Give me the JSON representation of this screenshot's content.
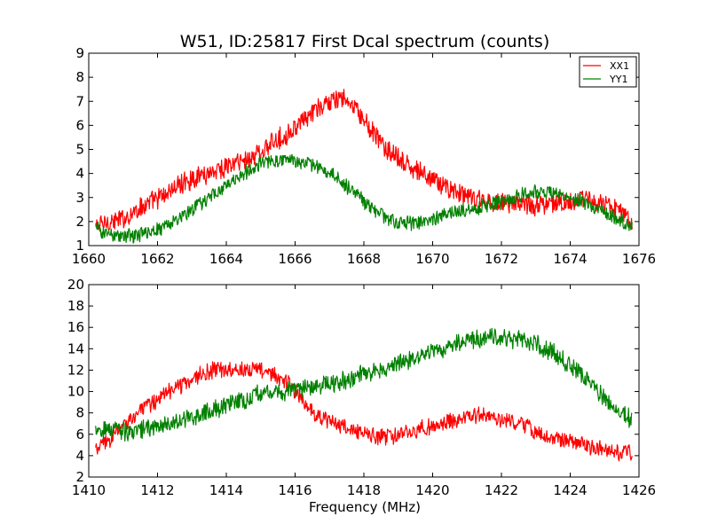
{
  "figure": {
    "title": "W51, ID:25817 First Dcal spectrum (counts)",
    "xlabel": "Frequency (MHz)"
  },
  "chart_data": [
    {
      "type": "line",
      "title": "W51, ID:25817 First Dcal spectrum (counts)",
      "xlabel": "",
      "ylabel": "",
      "xlim": [
        1660,
        1676
      ],
      "ylim": [
        1,
        9
      ],
      "xticks": [
        "1660",
        "1662",
        "1664",
        "1666",
        "1668",
        "1670",
        "1672",
        "1674",
        "1676"
      ],
      "yticks": [
        "1",
        "2",
        "3",
        "4",
        "5",
        "6",
        "7",
        "8",
        "9"
      ],
      "legend_position": "top-right",
      "grid": false,
      "series": [
        {
          "name": "XX1",
          "color": "#ff0000",
          "x": [
            1660.2,
            1660.6,
            1661,
            1661.4,
            1661.8,
            1662.2,
            1662.6,
            1663,
            1663.4,
            1663.8,
            1664.2,
            1664.6,
            1665,
            1665.4,
            1665.8,
            1666.2,
            1666.6,
            1667,
            1667.4,
            1667.8,
            1668.2,
            1668.6,
            1669,
            1669.4,
            1669.8,
            1670.2,
            1670.6,
            1671,
            1671.4,
            1671.8,
            1672.2,
            1672.6,
            1673,
            1673.4,
            1673.8,
            1674.2,
            1674.6,
            1675,
            1675.4,
            1675.8
          ],
          "y": [
            1.8,
            2.0,
            2.1,
            2.5,
            2.8,
            3.1,
            3.5,
            3.8,
            4.0,
            4.2,
            4.4,
            4.6,
            4.9,
            5.3,
            5.7,
            6.1,
            6.6,
            7.0,
            7.1,
            6.6,
            5.8,
            5.1,
            4.6,
            4.2,
            3.9,
            3.6,
            3.3,
            3.0,
            2.9,
            2.8,
            2.8,
            2.7,
            2.7,
            2.8,
            2.8,
            2.9,
            2.9,
            2.7,
            2.4,
            2.1
          ]
        },
        {
          "name": "YY1",
          "color": "#008000",
          "x": [
            1660.2,
            1660.6,
            1661,
            1661.4,
            1661.8,
            1662.2,
            1662.6,
            1663,
            1663.4,
            1663.8,
            1664.2,
            1664.6,
            1665,
            1665.4,
            1665.8,
            1666.2,
            1666.6,
            1667,
            1667.4,
            1667.8,
            1668.2,
            1668.6,
            1669,
            1669.4,
            1669.8,
            1670.2,
            1670.6,
            1671,
            1671.4,
            1671.8,
            1672.2,
            1672.6,
            1673,
            1673.4,
            1673.8,
            1674.2,
            1674.6,
            1675,
            1675.4,
            1675.8
          ],
          "y": [
            1.7,
            1.5,
            1.4,
            1.4,
            1.6,
            1.8,
            2.1,
            2.5,
            2.9,
            3.3,
            3.7,
            4.1,
            4.4,
            4.5,
            4.6,
            4.5,
            4.3,
            4.0,
            3.6,
            3.1,
            2.6,
            2.2,
            2.0,
            1.9,
            2.0,
            2.2,
            2.4,
            2.5,
            2.6,
            2.8,
            2.9,
            3.1,
            3.2,
            3.2,
            3.1,
            2.9,
            2.7,
            2.4,
            2.1,
            1.8
          ]
        }
      ]
    },
    {
      "type": "line",
      "title": "",
      "xlabel": "Frequency (MHz)",
      "ylabel": "",
      "xlim": [
        1410,
        1426
      ],
      "ylim": [
        2,
        20
      ],
      "xticks": [
        "1410",
        "1412",
        "1414",
        "1416",
        "1418",
        "1420",
        "1422",
        "1424",
        "1426"
      ],
      "yticks": [
        "2",
        "4",
        "6",
        "8",
        "10",
        "12",
        "14",
        "16",
        "18",
        "20"
      ],
      "grid": false,
      "series": [
        {
          "color": "#ff0000",
          "x": [
            1410.2,
            1410.6,
            1411,
            1411.4,
            1411.8,
            1412.2,
            1412.6,
            1413,
            1413.4,
            1413.8,
            1414.2,
            1414.6,
            1415,
            1415.4,
            1415.8,
            1416.2,
            1416.6,
            1417,
            1417.4,
            1417.8,
            1418.2,
            1418.6,
            1419,
            1419.4,
            1419.8,
            1420.2,
            1420.6,
            1421,
            1421.4,
            1421.8,
            1422.2,
            1422.6,
            1423,
            1423.4,
            1423.8,
            1424.2,
            1424.6,
            1425,
            1425.4,
            1425.8
          ],
          "y": [
            4.5,
            5.5,
            6.8,
            8.0,
            8.8,
            9.8,
            10.5,
            11.2,
            11.8,
            12.0,
            12.2,
            12.2,
            12.0,
            11.5,
            10.8,
            9.2,
            7.8,
            7.2,
            6.7,
            6.2,
            6.0,
            5.8,
            5.9,
            6.2,
            6.6,
            6.9,
            7.4,
            7.6,
            7.8,
            7.5,
            7.2,
            6.8,
            6.2,
            5.8,
            5.5,
            5.2,
            4.8,
            4.5,
            4.3,
            4.3
          ]
        },
        {
          "color": "#008000",
          "x": [
            1410.2,
            1410.6,
            1411,
            1411.4,
            1411.8,
            1412.2,
            1412.6,
            1413,
            1413.4,
            1413.8,
            1414.2,
            1414.6,
            1415,
            1415.4,
            1415.8,
            1416.2,
            1416.6,
            1417,
            1417.4,
            1417.8,
            1418.2,
            1418.6,
            1419,
            1419.4,
            1419.8,
            1420.2,
            1420.6,
            1421,
            1421.4,
            1421.8,
            1422.2,
            1422.6,
            1423,
            1423.4,
            1423.8,
            1424.2,
            1424.6,
            1425,
            1425.4,
            1425.8
          ],
          "y": [
            6.5,
            6.4,
            6.3,
            6.4,
            6.6,
            6.9,
            7.2,
            7.6,
            8.0,
            8.5,
            9.0,
            9.4,
            9.8,
            10.0,
            10.1,
            10.2,
            10.4,
            10.7,
            11.0,
            11.4,
            11.8,
            12.2,
            12.6,
            13.0,
            13.6,
            14.0,
            14.4,
            14.8,
            15.0,
            15.1,
            15.0,
            14.8,
            14.4,
            13.8,
            13.0,
            12.0,
            10.8,
            9.5,
            8.3,
            7.3
          ]
        }
      ]
    }
  ]
}
